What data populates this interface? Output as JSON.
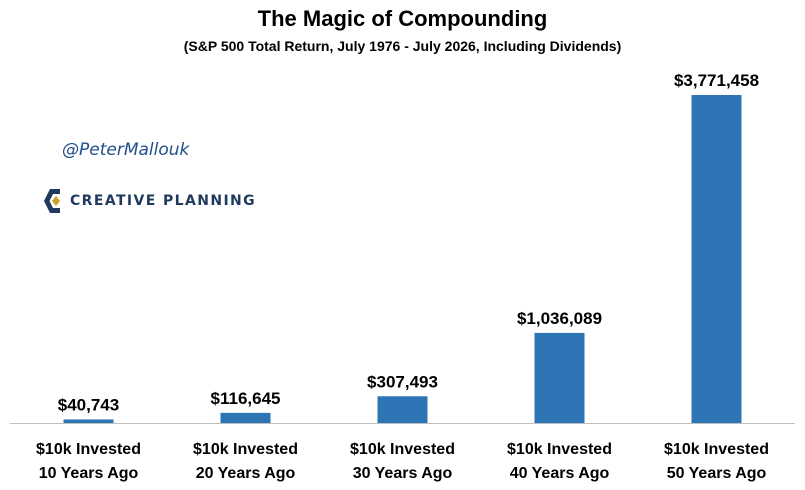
{
  "header": {
    "title": "The Magic of Compounding",
    "subtitle": "(S&P 500 Total Return, July 1976 - July 2026, Including Dividends)"
  },
  "branding": {
    "handle": "@PeterMallouk",
    "logo_text": "CREATIVE PLANNING",
    "logo_icon": "creative-planning-logo-icon",
    "logo_color": "#1f3a5c",
    "logo_accent": "#c9a227"
  },
  "chart_data": {
    "type": "bar",
    "categories": [
      [
        "$10k Invested",
        "10 Years Ago"
      ],
      [
        "$10k Invested",
        "20 Years Ago"
      ],
      [
        "$10k Invested",
        "30 Years Ago"
      ],
      [
        "$10k Invested",
        "40 Years Ago"
      ],
      [
        "$10k Invested",
        "50 Years Ago"
      ]
    ],
    "values": [
      40743,
      116645,
      307493,
      1036089,
      3771458
    ],
    "value_labels": [
      "$40,743",
      "$116,645",
      "$307,493",
      "$1,036,089",
      "$3,771,458"
    ],
    "title": "The Magic of Compounding",
    "subtitle": "(S&P 500 Total Return, July 1976 - July 2026, Including Dividends)",
    "ylim": [
      0,
      3771458
    ],
    "grid": false,
    "bar_color": "#2e75b6"
  }
}
